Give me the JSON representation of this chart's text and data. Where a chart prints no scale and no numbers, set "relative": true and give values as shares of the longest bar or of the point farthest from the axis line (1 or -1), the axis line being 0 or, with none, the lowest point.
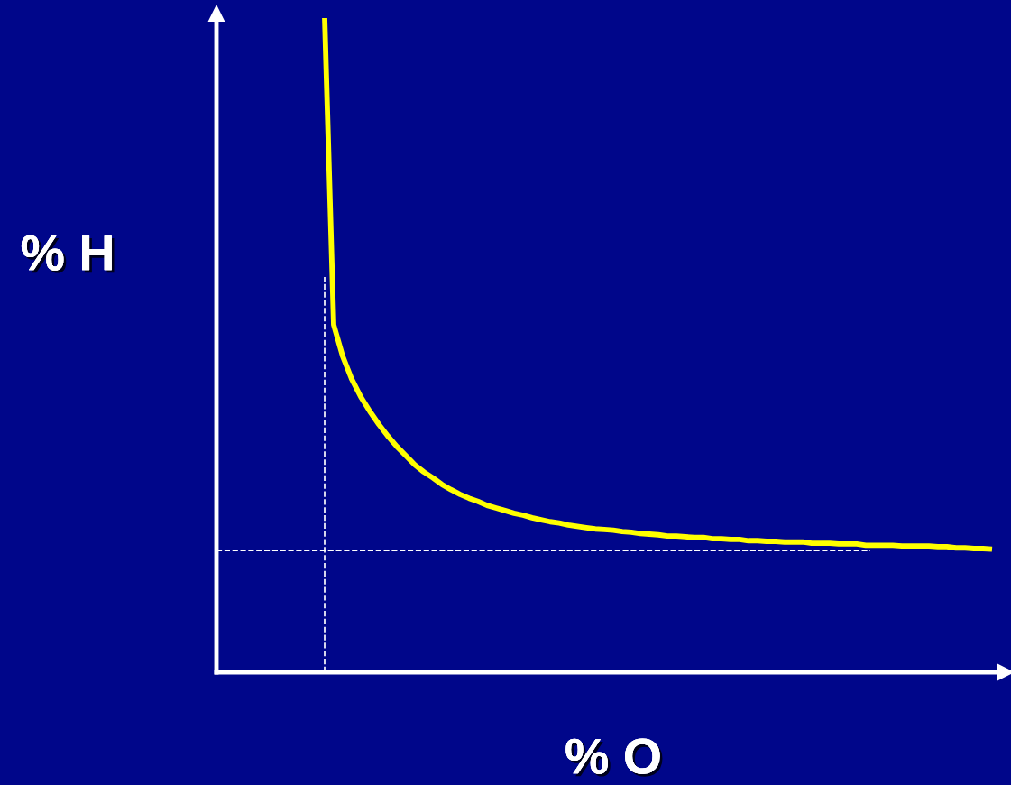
{
  "chart_data": {
    "type": "line",
    "relative": true,
    "xlabel": "% O",
    "ylabel": "% H",
    "categories": [
      null,
      null,
      null,
      null,
      null,
      null,
      null,
      null,
      null,
      null,
      null,
      null,
      null,
      null,
      null,
      null,
      null,
      null,
      null,
      null,
      null,
      null,
      null,
      null,
      null,
      null,
      null,
      null,
      null,
      null,
      null,
      null,
      null,
      null,
      null,
      null,
      null,
      null,
      null,
      null,
      null,
      null,
      null,
      null,
      null,
      null,
      null,
      null,
      null,
      null,
      null,
      null,
      null,
      null,
      null,
      null,
      null,
      null,
      null,
      null,
      null,
      null,
      null,
      null,
      null,
      null,
      null,
      null,
      null,
      null,
      null,
      null,
      null,
      null,
      null
    ],
    "series": [
      {
        "color": "#ffff00",
        "values": [
          1.0,
          0.531,
          0.483,
          0.448,
          0.421,
          0.399,
          0.379,
          0.361,
          0.345,
          0.331,
          0.317,
          0.306,
          0.297,
          0.287,
          0.279,
          0.272,
          0.266,
          0.261,
          0.255,
          0.251,
          0.247,
          0.243,
          0.24,
          0.236,
          0.233,
          0.23,
          0.228,
          0.225,
          0.223,
          0.221,
          0.219,
          0.218,
          0.217,
          0.215,
          0.214,
          0.212,
          0.211,
          0.21,
          0.208,
          0.208,
          0.207,
          0.206,
          0.206,
          0.204,
          0.204,
          0.203,
          0.203,
          0.201,
          0.201,
          0.2,
          0.2,
          0.199,
          0.199,
          0.199,
          0.197,
          0.197,
          0.197,
          0.196,
          0.196,
          0.196,
          0.194,
          0.194,
          0.194,
          0.194,
          0.193,
          0.193,
          0.193,
          0.193,
          0.192,
          0.192,
          0.19,
          0.19,
          0.189,
          0.189,
          0.188
        ]
      }
    ],
    "ref_lines": [
      {
        "axis": "y",
        "value": 0.186,
        "color": "#ffffff",
        "line_style": "dashed"
      }
    ],
    "marker": "none",
    "line_style": "solid",
    "legend": false
  }
}
